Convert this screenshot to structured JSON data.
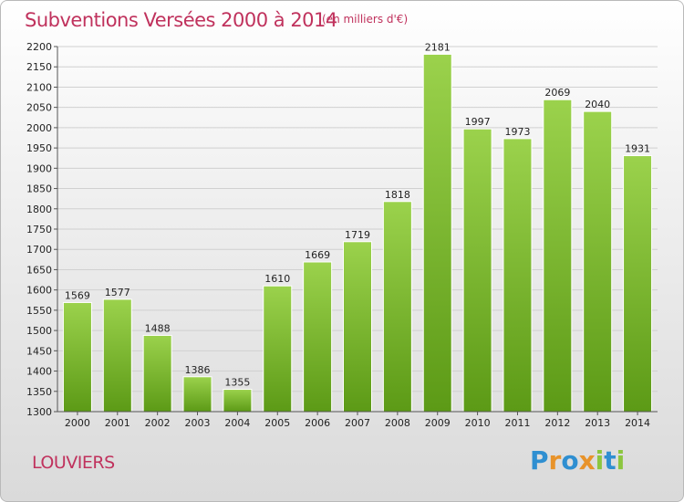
{
  "title": "Subventions Versées 2000 à 2014",
  "unit_note": "(en milliers d'€)",
  "town": "LOUVIERS",
  "logo": {
    "text": "Proxiti",
    "letters": [
      {
        "ch": "P",
        "color": "#2f8fd1"
      },
      {
        "ch": "r",
        "color": "#e8932a"
      },
      {
        "ch": "o",
        "color": "#2f8fd1"
      },
      {
        "ch": "x",
        "color": "#e8932a"
      },
      {
        "ch": "i",
        "color": "#8cc63f"
      },
      {
        "ch": "t",
        "color": "#2f8fd1"
      },
      {
        "ch": "i",
        "color": "#8cc63f"
      }
    ]
  },
  "colors": {
    "accent": "#c0325d",
    "bar_top": "#9bd24c",
    "bar_bottom": "#5c9a16",
    "grid": "#d0d0d0"
  },
  "chart_data": {
    "type": "bar",
    "title": "Subventions Versées 2000 à 2014",
    "categories": [
      "2000",
      "2001",
      "2002",
      "2003",
      "2004",
      "2005",
      "2006",
      "2007",
      "2008",
      "2009",
      "2010",
      "2011",
      "2012",
      "2013",
      "2014"
    ],
    "values": [
      1569,
      1577,
      1488,
      1386,
      1355,
      1610,
      1669,
      1719,
      1818,
      2181,
      1997,
      1973,
      2069,
      2040,
      1931
    ],
    "ylim": [
      1300,
      2200
    ],
    "yticks": [
      1300,
      1350,
      1400,
      1450,
      1500,
      1550,
      1600,
      1650,
      1700,
      1750,
      1800,
      1850,
      1900,
      1950,
      2000,
      2050,
      2100,
      2150,
      2200
    ],
    "grid": true,
    "data_labels": true
  }
}
